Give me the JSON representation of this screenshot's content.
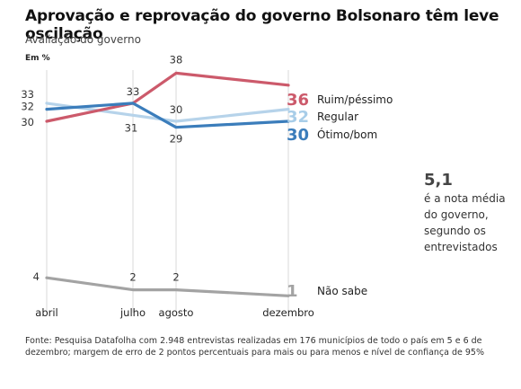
{
  "header": {
    "title": "Aprovação e reprovação do governo Bolsonaro têm leve oscilação",
    "subtitle": "Avaliação do governo",
    "unit": "Em %"
  },
  "side_note": {
    "value": "5,1",
    "text": "é a nota média do governo, segundo os entrevistados"
  },
  "source": "Fonte: Pesquisa Datafolha com 2.948 entrevistas realizadas em 176 municípios de todo o país em 5 e 6 de dezembro; margem de erro de 2 pontos percentuais para mais ou para menos e nível de confiança de 95%",
  "chart_data": {
    "type": "line",
    "title": "Aprovação e reprovação do governo Bolsonaro têm leve oscilação",
    "subtitle": "Avaliação do governo",
    "ylabel": "Em %",
    "categories": [
      "abril",
      "julho",
      "agosto",
      "dezembro"
    ],
    "ylim": [
      0,
      40
    ],
    "grid": false,
    "series": [
      {
        "name": "Ruim/péssimo",
        "values": [
          30,
          33,
          38,
          36
        ],
        "color": "#cc5a6b",
        "end_label_color": "#cc5a6b"
      },
      {
        "name": "Regular",
        "values": [
          33,
          31,
          30,
          32
        ],
        "color": "#b6d3ea",
        "end_label_color": "#a8cde8"
      },
      {
        "name": "Ótimo/bom",
        "values": [
          32,
          33,
          29,
          30
        ],
        "color": "#3b7dbb",
        "end_label_color": "#3b7dbb"
      },
      {
        "name": "Não sabe",
        "values": [
          4,
          2,
          2,
          1
        ],
        "color": "#a3a3a3",
        "end_label_color": "#a3a3a3"
      }
    ],
    "point_labels": [
      {
        "series": 0,
        "index": 0,
        "text": "30"
      },
      {
        "series": 0,
        "index": 2,
        "text": "38"
      },
      {
        "series": 1,
        "index": 0,
        "text": "33"
      },
      {
        "series": 1,
        "index": 1,
        "text": "31"
      },
      {
        "series": 1,
        "index": 2,
        "text": "30"
      },
      {
        "series": 2,
        "index": 0,
        "text": "32"
      },
      {
        "series": 2,
        "index": 1,
        "text": "33"
      },
      {
        "series": 2,
        "index": 2,
        "text": "29"
      },
      {
        "series": 3,
        "index": 0,
        "text": "4"
      },
      {
        "series": 3,
        "index": 1,
        "text": "2"
      },
      {
        "series": 3,
        "index": 2,
        "text": "2"
      }
    ],
    "end_labels": [
      "36",
      "32",
      "30",
      "1"
    ]
  }
}
